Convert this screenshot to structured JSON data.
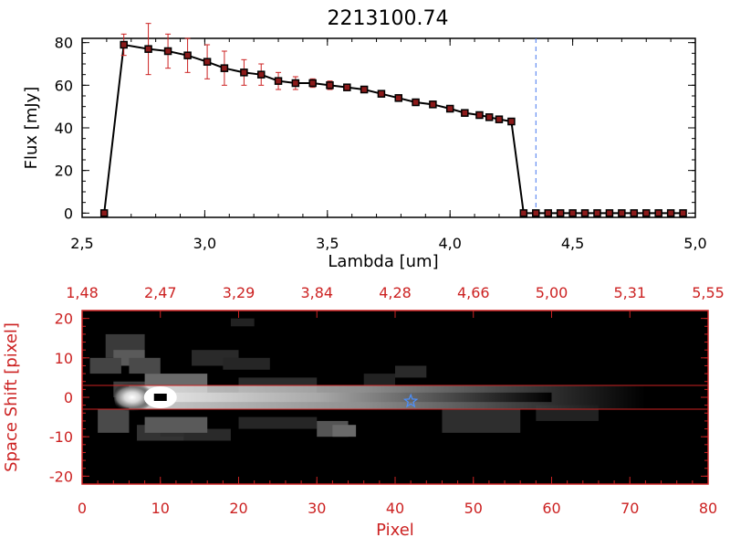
{
  "chart_data": [
    {
      "type": "line",
      "title": "2213100.74",
      "xlabel": "Lambda [um]",
      "ylabel": "Flux [mJy]",
      "xlim": [
        2.5,
        5.0
      ],
      "ylim": [
        -2,
        82
      ],
      "xticks": [
        "2.5",
        "3.0",
        "3.5",
        "4.0",
        "4.5",
        "5.0"
      ],
      "yticks": [
        "0",
        "20",
        "40",
        "60",
        "80"
      ],
      "marker_line_value": 4.35,
      "series": [
        {
          "x": [
            2.59,
            2.67,
            2.77,
            2.85,
            2.93,
            3.01,
            3.08,
            3.16,
            3.23,
            3.3,
            3.37,
            3.44,
            3.51,
            3.58,
            3.65,
            3.72,
            3.79,
            3.86,
            3.93,
            4.0,
            4.06,
            4.12,
            4.16,
            4.2,
            4.25,
            4.3,
            4.35,
            4.4,
            4.45,
            4.5,
            4.55,
            4.6,
            4.65,
            4.7,
            4.75,
            4.8,
            4.85,
            4.9,
            4.95
          ],
          "y": [
            0,
            79,
            77,
            76,
            74,
            71,
            68,
            66,
            65,
            62,
            61,
            61,
            60,
            59,
            58,
            56,
            54,
            52,
            51,
            49,
            47,
            46,
            45,
            44,
            43,
            0,
            0,
            0,
            0,
            0,
            0,
            0,
            0,
            0,
            0,
            0,
            0,
            0,
            0
          ],
          "yerr": [
            0,
            5,
            12,
            8,
            8,
            8,
            8,
            6,
            5,
            4,
            3,
            2,
            2,
            1.5,
            1.5,
            1.5,
            1.5,
            1.5,
            1.5,
            1.5,
            1.5,
            1.5,
            1.5,
            1.5,
            1.5,
            0,
            0,
            0,
            0,
            0,
            0,
            0,
            0,
            0,
            0,
            0,
            0,
            0,
            0
          ],
          "line_color": "#000000",
          "marker_fill": "#8b1a1a",
          "errorbar_color": "#cc2222"
        }
      ]
    },
    {
      "type": "heatmap",
      "xlabel": "Pixel",
      "ylabel": "Space Shift [pixel]",
      "xlim": [
        0,
        80
      ],
      "ylim": [
        -22,
        22
      ],
      "xticks": [
        "0",
        "10",
        "20",
        "30",
        "40",
        "50",
        "60",
        "70",
        "80"
      ],
      "yticks": [
        "-20",
        "-10",
        "0",
        "10",
        "20"
      ],
      "top_axis_ticks": [
        "1.48",
        "2.47",
        "3.29",
        "3.84",
        "4.28",
        "4.66",
        "5.00",
        "5.31",
        "5.55"
      ],
      "aperture_lines": [
        3,
        -3
      ],
      "source_marker": {
        "x": 42,
        "y": -1,
        "symbol": "star"
      },
      "peak_marker": {
        "x": 10,
        "y": 0
      },
      "accent_color": "#cc2222"
    }
  ]
}
